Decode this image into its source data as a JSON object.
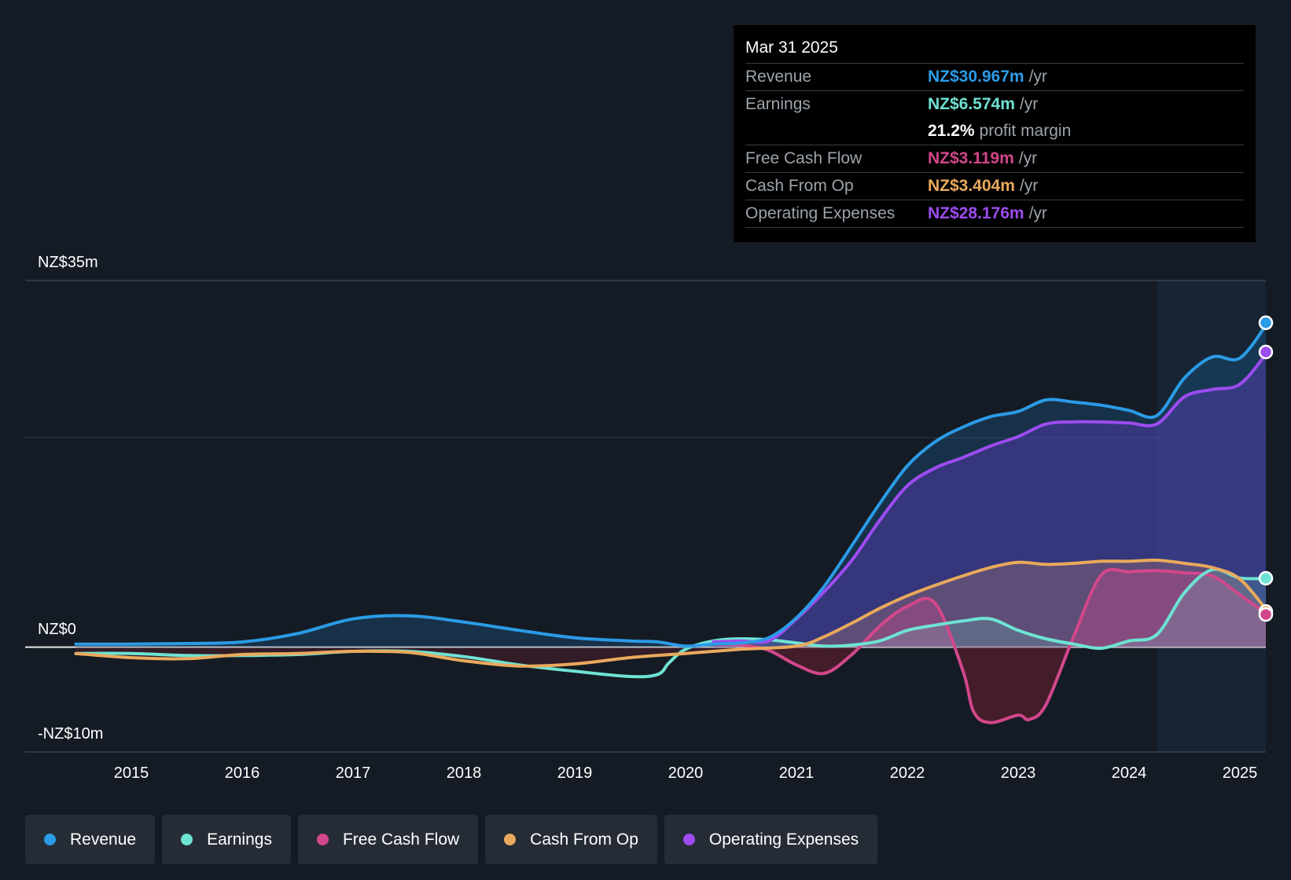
{
  "tooltip": {
    "date": "Mar 31 2025",
    "rows": [
      {
        "label": "Revenue",
        "value": "NZ$30.967m",
        "unit": "/yr",
        "color": "#2b9be6"
      },
      {
        "label": "Earnings",
        "value": "NZ$6.574m",
        "unit": "/yr",
        "color": "#6ee3d4"
      },
      {
        "label": "",
        "value": "21.2%",
        "unit": "profit margin",
        "color": "#ffffff"
      },
      {
        "label": "Free Cash Flow",
        "value": "NZ$3.119m",
        "unit": "/yr",
        "color": "#d2478b"
      },
      {
        "label": "Cash From Op",
        "value": "NZ$3.404m",
        "unit": "/yr",
        "color": "#e9a95c"
      },
      {
        "label": "Operating Expenses",
        "value": "NZ$28.176m",
        "unit": "/yr",
        "color": "#9d4cf0"
      }
    ]
  },
  "legend": [
    {
      "label": "Revenue",
      "color": "#2b9be6"
    },
    {
      "label": "Earnings",
      "color": "#6ee3d4"
    },
    {
      "label": "Free Cash Flow",
      "color": "#d2478b"
    },
    {
      "label": "Cash From Op",
      "color": "#e9a95c"
    },
    {
      "label": "Operating Expenses",
      "color": "#9d4cf0"
    }
  ],
  "chart_data": {
    "type": "area",
    "title": "",
    "y_labels": {
      "top": "NZ$35m",
      "zero": "NZ$0",
      "bottom": "-NZ$10m"
    },
    "ylim": [
      -10,
      35
    ],
    "xlim": [
      2014.25,
      2025.25
    ],
    "x_ticks": [
      "2015",
      "2016",
      "2017",
      "2018",
      "2019",
      "2020",
      "2021",
      "2022",
      "2023",
      "2024",
      "2025"
    ],
    "forecast_start": 2024.25,
    "series": [
      {
        "name": "Revenue",
        "color": "#2b9be6",
        "x": [
          2014.5,
          2015.0,
          2015.5,
          2016.0,
          2016.5,
          2017.0,
          2017.5,
          2018.0,
          2018.5,
          2019.0,
          2019.5,
          2019.75,
          2020.0,
          2020.25,
          2020.5,
          2020.75,
          2021.0,
          2021.25,
          2021.5,
          2021.75,
          2022.0,
          2022.25,
          2022.5,
          2022.75,
          2023.0,
          2023.25,
          2023.5,
          2023.75,
          2024.0,
          2024.25,
          2024.5,
          2024.75,
          2025.0,
          2025.25
        ],
        "y": [
          0.3,
          0.3,
          0.35,
          0.5,
          1.3,
          2.7,
          3.0,
          2.4,
          1.6,
          0.9,
          0.6,
          0.5,
          0.1,
          0.3,
          0.4,
          0.9,
          2.8,
          5.8,
          9.7,
          13.7,
          17.3,
          19.6,
          21.0,
          22.0,
          22.5,
          23.6,
          23.4,
          23.1,
          22.6,
          22.1,
          25.7,
          27.7,
          27.6,
          30.967
        ]
      },
      {
        "name": "Earnings",
        "color": "#6ee3d4",
        "x": [
          2014.5,
          2015.0,
          2015.5,
          2016.0,
          2016.5,
          2017.0,
          2017.5,
          2018.0,
          2018.5,
          2019.0,
          2019.5,
          2019.75,
          2019.85,
          2020.0,
          2020.25,
          2020.5,
          2020.75,
          2021.0,
          2021.25,
          2021.5,
          2021.75,
          2022.0,
          2022.25,
          2022.5,
          2022.75,
          2023.0,
          2023.25,
          2023.5,
          2023.75,
          2024.0,
          2024.25,
          2024.5,
          2024.75,
          2025.0,
          2025.25
        ],
        "y": [
          -0.6,
          -0.6,
          -0.8,
          -0.8,
          -0.7,
          -0.4,
          -0.4,
          -0.9,
          -1.7,
          -2.3,
          -2.8,
          -2.6,
          -1.5,
          -0.2,
          0.6,
          0.8,
          0.7,
          0.4,
          0.1,
          0.2,
          0.6,
          1.6,
          2.1,
          2.5,
          2.7,
          1.6,
          0.8,
          0.3,
          -0.1,
          0.6,
          1.2,
          5.2,
          7.4,
          6.6,
          6.574
        ]
      },
      {
        "name": "Free Cash Flow",
        "color": "#d2478b",
        "x": [
          2020.25,
          2020.5,
          2020.75,
          2021.0,
          2021.25,
          2021.5,
          2021.75,
          2022.0,
          2022.25,
          2022.5,
          2022.6,
          2022.75,
          2023.0,
          2023.1,
          2023.25,
          2023.5,
          2023.75,
          2024.0,
          2024.25,
          2024.5,
          2024.75,
          2025.0,
          2025.25
        ],
        "y": [
          0.3,
          0.2,
          -0.3,
          -1.7,
          -2.5,
          -0.7,
          2.0,
          3.9,
          4.2,
          -2.2,
          -6.2,
          -7.2,
          -6.5,
          -6.9,
          -5.5,
          1.0,
          6.9,
          7.2,
          7.3,
          7.1,
          6.8,
          5.0,
          3.119
        ]
      },
      {
        "name": "Cash From Op",
        "color": "#e9a95c",
        "x": [
          2014.5,
          2015.0,
          2015.5,
          2016.0,
          2016.5,
          2017.0,
          2017.5,
          2018.0,
          2018.5,
          2019.0,
          2019.5,
          2020.0,
          2020.5,
          2021.0,
          2021.25,
          2021.5,
          2021.75,
          2022.0,
          2022.25,
          2022.5,
          2022.75,
          2023.0,
          2023.25,
          2023.5,
          2023.75,
          2024.0,
          2024.25,
          2024.5,
          2024.75,
          2025.0,
          2025.25
        ],
        "y": [
          -0.6,
          -1.0,
          -1.1,
          -0.7,
          -0.6,
          -0.4,
          -0.5,
          -1.3,
          -1.8,
          -1.6,
          -1.0,
          -0.6,
          -0.2,
          0.1,
          1.0,
          2.3,
          3.7,
          4.9,
          5.9,
          6.8,
          7.6,
          8.1,
          7.9,
          8.0,
          8.2,
          8.2,
          8.3,
          8.0,
          7.6,
          6.5,
          3.404
        ]
      },
      {
        "name": "Operating Expenses",
        "color": "#9d4cf0",
        "x": [
          2020.25,
          2020.5,
          2020.75,
          2021.0,
          2021.25,
          2021.5,
          2021.75,
          2022.0,
          2022.25,
          2022.5,
          2022.75,
          2023.0,
          2023.25,
          2023.5,
          2023.75,
          2024.0,
          2024.25,
          2024.5,
          2024.75,
          2025.0,
          2025.25
        ],
        "y": [
          0.5,
          0.6,
          0.6,
          2.7,
          5.3,
          8.3,
          12.1,
          15.4,
          17.1,
          18.1,
          19.2,
          20.1,
          21.3,
          21.5,
          21.5,
          21.4,
          21.3,
          23.9,
          24.6,
          25.1,
          28.176
        ]
      }
    ]
  }
}
